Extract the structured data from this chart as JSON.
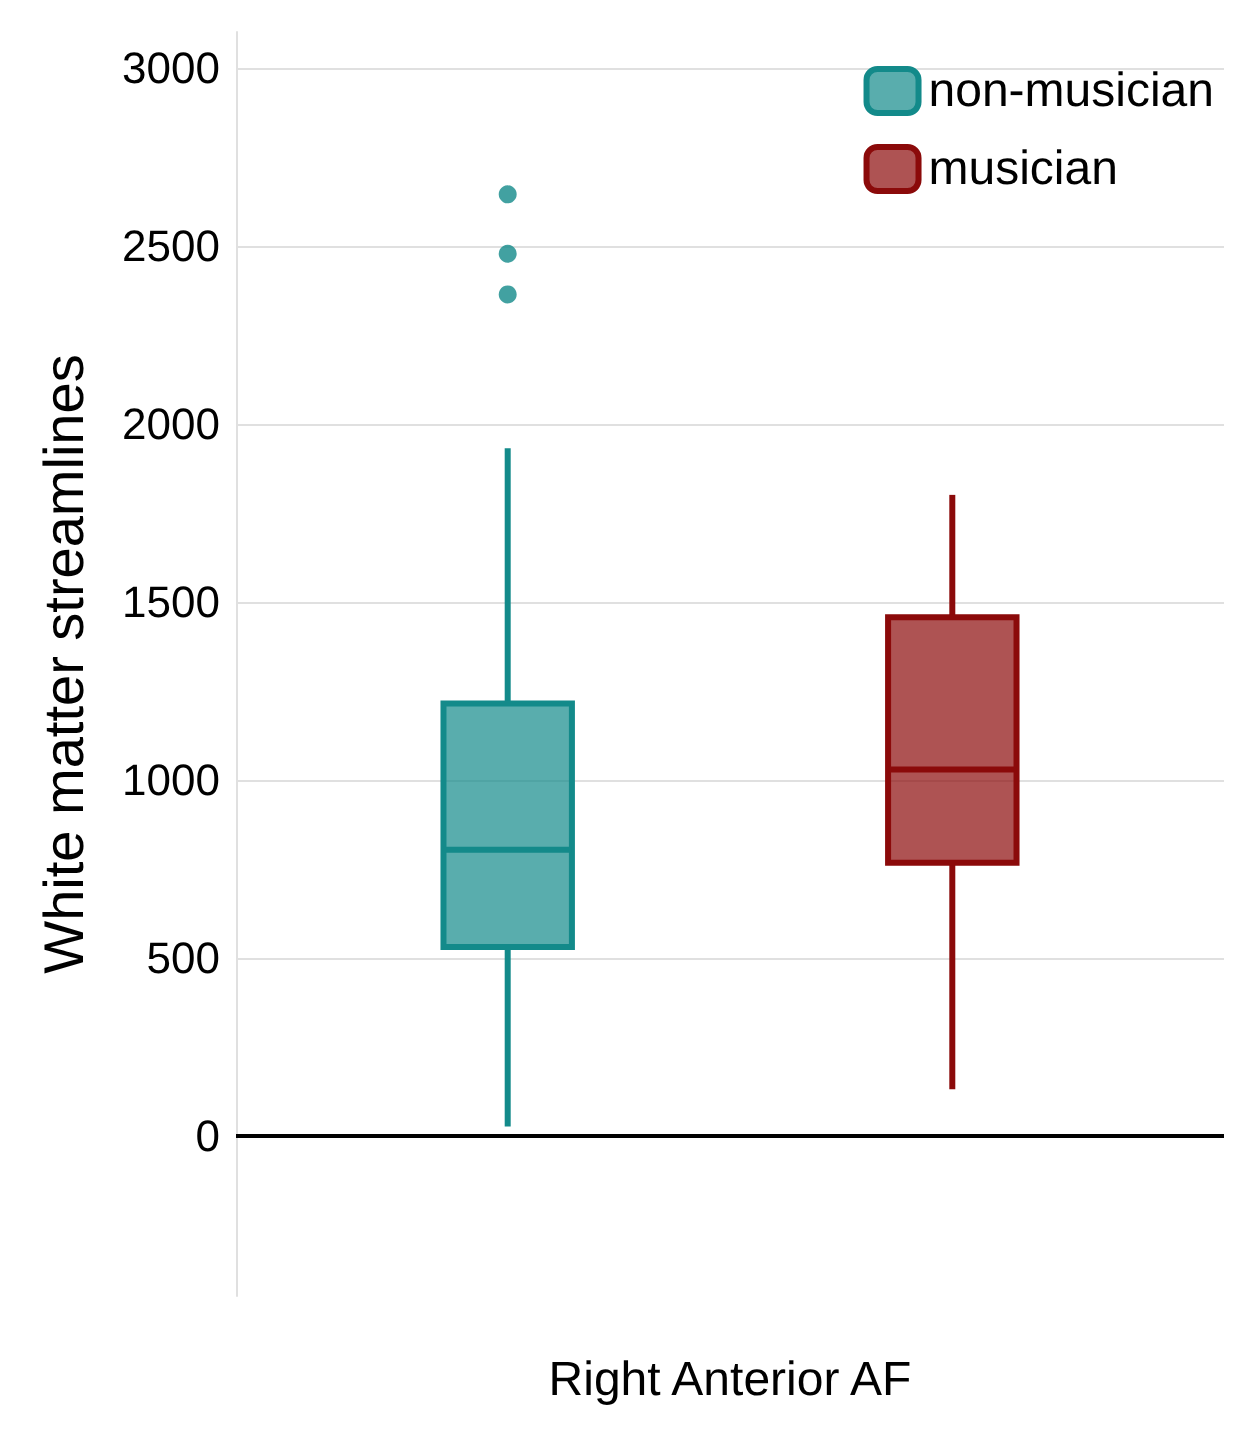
{
  "chart_data": {
    "type": "box",
    "ylabel": "White matter streamlines",
    "categories": [
      "Right Anterior AF"
    ],
    "series": [
      {
        "name": "non-musician",
        "color": "#138a8a",
        "boxes": [
          {
            "low": 26,
            "q1": 530,
            "median": 803,
            "q3": 1214,
            "high": 1931,
            "outliers": [
              2363,
              2477,
              2644
            ]
          }
        ]
      },
      {
        "name": "musician",
        "color": "#8b0a0a",
        "boxes": [
          {
            "low": 131,
            "q1": 767,
            "median": 1029,
            "q3": 1456,
            "high": 1800
          }
        ]
      }
    ],
    "ylim": [
      -450,
      3100
    ],
    "yticks": [
      0,
      500,
      1000,
      1500,
      2000,
      2500,
      3000
    ],
    "grid": "y",
    "legend": "top right",
    "ref_lines": [
      {
        "axis": "y",
        "value": 0,
        "color": "#000000"
      }
    ]
  }
}
